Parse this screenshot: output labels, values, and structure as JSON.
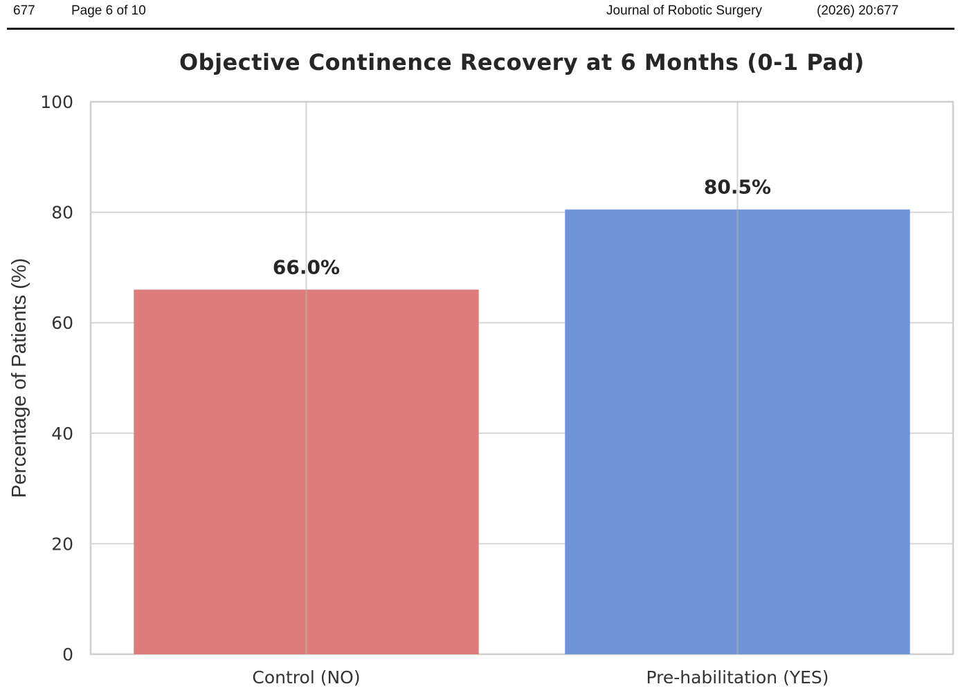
{
  "header": {
    "article_number": "677",
    "page": "Page 6 of 10",
    "journal": "Journal of Robotic Surgery",
    "citation": "(2026) 20:677"
  },
  "chart_data": {
    "type": "bar",
    "title": "Objective Continence Recovery at 6 Months (0-1 Pad)",
    "xlabel": "",
    "ylabel": "Percentage of Patients (%)",
    "categories": [
      "Control (NO)",
      "Pre-habilitation (YES)"
    ],
    "values": [
      66.0,
      80.5
    ],
    "data_labels": [
      "66.0%",
      "80.5%"
    ],
    "colors": [
      "#dd7c7b",
      "#6e93d8"
    ],
    "ylim": [
      0,
      100
    ],
    "yticks": [
      0,
      20,
      40,
      60,
      80,
      100
    ],
    "ytick_labels": [
      "0",
      "20",
      "40",
      "60",
      "80",
      "100"
    ],
    "grid": true,
    "legend": "none"
  }
}
